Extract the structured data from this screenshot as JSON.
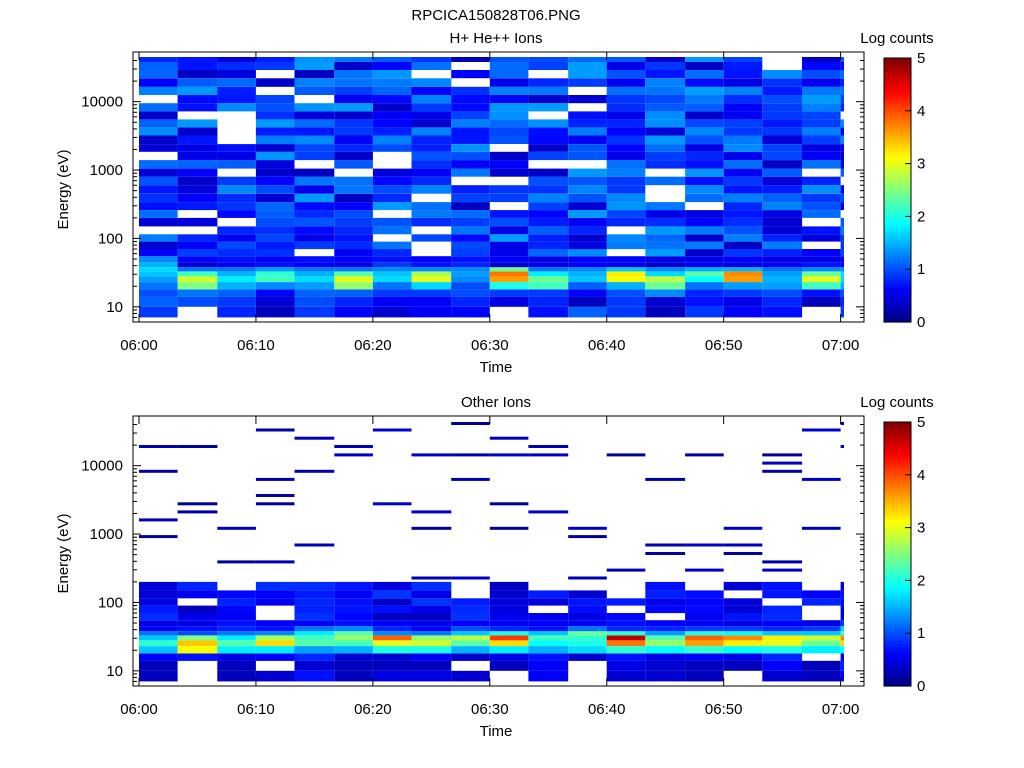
{
  "figure": {
    "title": "RPCICA150828T06.PNG"
  },
  "chart_data": [
    {
      "type": "heatmap",
      "title": "H+ He++ Ions",
      "xlabel": "Time",
      "ylabel": "Energy (eV)",
      "x_ticks": [
        "06:00",
        "06:10",
        "06:20",
        "06:30",
        "06:40",
        "06:50",
        "07:00"
      ],
      "x_range": [
        "06:00",
        "07:02"
      ],
      "y_scale": "log",
      "y_range": [
        6,
        45000
      ],
      "y_ticks": [
        "10",
        "100",
        "1000",
        "10000"
      ],
      "colorbar": {
        "label": "Log counts",
        "range": [
          0,
          5
        ],
        "ticks": [
          "0",
          "1",
          "2",
          "3",
          "4",
          "5"
        ],
        "colormap": "jet"
      },
      "time_bins": [
        "06:00",
        "06:03.3",
        "06:06.7",
        "06:10",
        "06:13.3",
        "06:16.7",
        "06:20",
        "06:23.3",
        "06:26.7",
        "06:30",
        "06:33.3",
        "06:36.7",
        "06:40",
        "06:43.3",
        "06:46.7",
        "06:50",
        "06:53.3",
        "06:56.7",
        "07:00"
      ],
      "energy_bins": [
        7,
        10,
        14,
        18,
        23,
        28,
        33,
        38,
        45,
        55,
        70,
        90,
        115,
        150,
        200,
        260,
        340,
        450,
        600,
        800,
        1050,
        1400,
        1850,
        2400,
        3200,
        4200,
        5500,
        7200,
        9500,
        12500,
        16500,
        22000,
        29000,
        38000
      ],
      "low_energy_profiles": [
        [
          0.9,
          1.1,
          1.0,
          1.2,
          1.4,
          1.6,
          1.7,
          1.5,
          1.3
        ],
        [
          null,
          1.0,
          1.2,
          2.5,
          2.9,
          2.2,
          1.2,
          0.4,
          0.6
        ],
        [
          0.8,
          0.9,
          1.1,
          1.5,
          1.8,
          1.5,
          1.2,
          0.6,
          0.7
        ],
        [
          0.3,
          0.4,
          0.6,
          1.3,
          2.2,
          2.1,
          1.4,
          0.7,
          0.6
        ],
        [
          0.9,
          1.0,
          1.1,
          1.4,
          1.7,
          1.5,
          1.2,
          0.6,
          0.7
        ],
        [
          0.6,
          0.8,
          1.1,
          2.6,
          3.0,
          2.3,
          1.2,
          0.5,
          0.6
        ],
        [
          0.4,
          0.6,
          0.9,
          1.2,
          1.7,
          1.6,
          1.3,
          0.9,
          0.7
        ],
        [
          0.6,
          0.6,
          0.9,
          1.7,
          3.0,
          2.7,
          1.3,
          0.7,
          0.6
        ],
        [
          0.6,
          0.8,
          1.0,
          1.0,
          1.3,
          1.4,
          1.3,
          0.8,
          0.7
        ],
        [
          null,
          0.5,
          0.9,
          2.0,
          3.6,
          3.8,
          2.4,
          0.4,
          0.6
        ],
        [
          0.7,
          0.8,
          0.9,
          2.2,
          2.4,
          1.8,
          1.2,
          0.5,
          0.5
        ],
        [
          1.1,
          0.3,
          0.6,
          1.1,
          1.6,
          1.5,
          1.3,
          0.6,
          0.6
        ],
        [
          0.9,
          0.9,
          1.0,
          1.5,
          3.1,
          3.2,
          1.6,
          0.5,
          0.6
        ],
        [
          0.3,
          0.4,
          1.3,
          2.4,
          2.8,
          1.7,
          1.3,
          0.4,
          0.5
        ],
        [
          0.9,
          0.7,
          0.8,
          1.2,
          1.9,
          2.3,
          1.5,
          0.6,
          0.5
        ],
        [
          0.6,
          0.5,
          0.9,
          1.4,
          3.6,
          3.7,
          1.5,
          0.5,
          0.6
        ],
        [
          0.7,
          0.8,
          1.0,
          1.4,
          1.5,
          1.4,
          1.2,
          0.6,
          0.5
        ],
        [
          null,
          0.3,
          0.7,
          2.2,
          3.0,
          2.4,
          1.3,
          0.7,
          0.5
        ],
        [
          0.9,
          0.8,
          1.0,
          1.5,
          1.7,
          1.7,
          1.3,
          0.6,
          0.6
        ]
      ],
      "background_level": "0.3-1.3 (blue), with scattered empty bins"
    },
    {
      "type": "heatmap",
      "title": "Other Ions",
      "xlabel": "Time",
      "ylabel": "Energy (eV)",
      "x_ticks": [
        "06:00",
        "06:10",
        "06:20",
        "06:30",
        "06:40",
        "06:50",
        "07:00"
      ],
      "x_range": [
        "06:00",
        "07:02"
      ],
      "y_scale": "log",
      "y_range": [
        6,
        45000
      ],
      "y_ticks": [
        "10",
        "100",
        "1000",
        "10000"
      ],
      "colorbar": {
        "label": "Log counts",
        "range": [
          0,
          5
        ],
        "ticks": [
          "0",
          "1",
          "2",
          "3",
          "4",
          "5"
        ],
        "colormap": "jet"
      },
      "time_bins": [
        "06:00",
        "06:03.3",
        "06:06.7",
        "06:10",
        "06:13.3",
        "06:16.7",
        "06:20",
        "06:23.3",
        "06:26.7",
        "06:30",
        "06:33.3",
        "06:36.7",
        "06:40",
        "06:43.3",
        "06:46.7",
        "06:50",
        "06:53.3",
        "06:56.7",
        "07:00"
      ],
      "low_energy_profiles": [
        [
          0.3,
          0.3,
          0.6,
          1.6,
          2.1,
          1.6,
          1.2,
          0.6,
          0.5
        ],
        [
          null,
          null,
          0.7,
          3.1,
          3.4,
          2.5,
          1.0,
          0.7,
          0.5
        ],
        [
          0.3,
          0.3,
          0.5,
          1.8,
          2.3,
          1.8,
          1.2,
          0.8,
          0.7
        ],
        [
          0.4,
          null,
          0.6,
          1.8,
          3.3,
          2.7,
          1.3,
          0.7,
          0.6
        ],
        [
          0.7,
          0.4,
          0.8,
          1.4,
          2.3,
          2.2,
          1.8,
          1.2,
          0.6
        ],
        [
          0.3,
          0.3,
          0.4,
          1.5,
          2.2,
          2.6,
          2.3,
          1.3,
          0.7
        ],
        [
          0.5,
          0.3,
          0.4,
          2.0,
          3.0,
          3.9,
          1.3,
          0.8,
          0.6
        ],
        [
          0.5,
          0.3,
          0.6,
          2.0,
          2.9,
          2.6,
          1.2,
          0.6,
          0.5
        ],
        [
          0.4,
          null,
          0.4,
          1.5,
          2.3,
          2.8,
          1.6,
          1.0,
          0.6
        ],
        [
          null,
          0.3,
          0.5,
          1.8,
          3.3,
          4.1,
          2.0,
          0.8,
          0.6
        ],
        [
          0.6,
          0.6,
          0.7,
          1.5,
          1.9,
          2.2,
          1.6,
          0.7,
          0.6
        ],
        [
          null,
          null,
          0.4,
          1.7,
          2.0,
          2.1,
          2.4,
          1.2,
          0.6
        ],
        [
          0.4,
          0.5,
          0.7,
          2.1,
          3.8,
          4.7,
          2.1,
          0.8,
          0.7
        ],
        [
          0.4,
          0.4,
          0.5,
          1.9,
          2.6,
          2.3,
          1.4,
          0.8,
          0.6
        ],
        [
          0.3,
          0.3,
          0.6,
          2.1,
          3.6,
          3.9,
          2.0,
          0.9,
          0.6
        ],
        [
          null,
          0.3,
          0.5,
          1.9,
          3.2,
          3.7,
          1.9,
          0.9,
          0.5
        ],
        [
          0.4,
          0.6,
          0.8,
          2.0,
          3.0,
          3.2,
          1.6,
          0.8,
          0.6
        ],
        [
          0.3,
          0.3,
          null,
          1.8,
          2.4,
          2.9,
          1.6,
          0.9,
          0.5
        ],
        [
          0.6,
          0.8,
          0.6,
          1.9,
          3.3,
          3.7,
          2.2,
          1.7,
          0.9
        ]
      ],
      "background_level": "sparse: mostly empty above ~200 eV with isolated low-count (~0-0.5) lines"
    }
  ]
}
